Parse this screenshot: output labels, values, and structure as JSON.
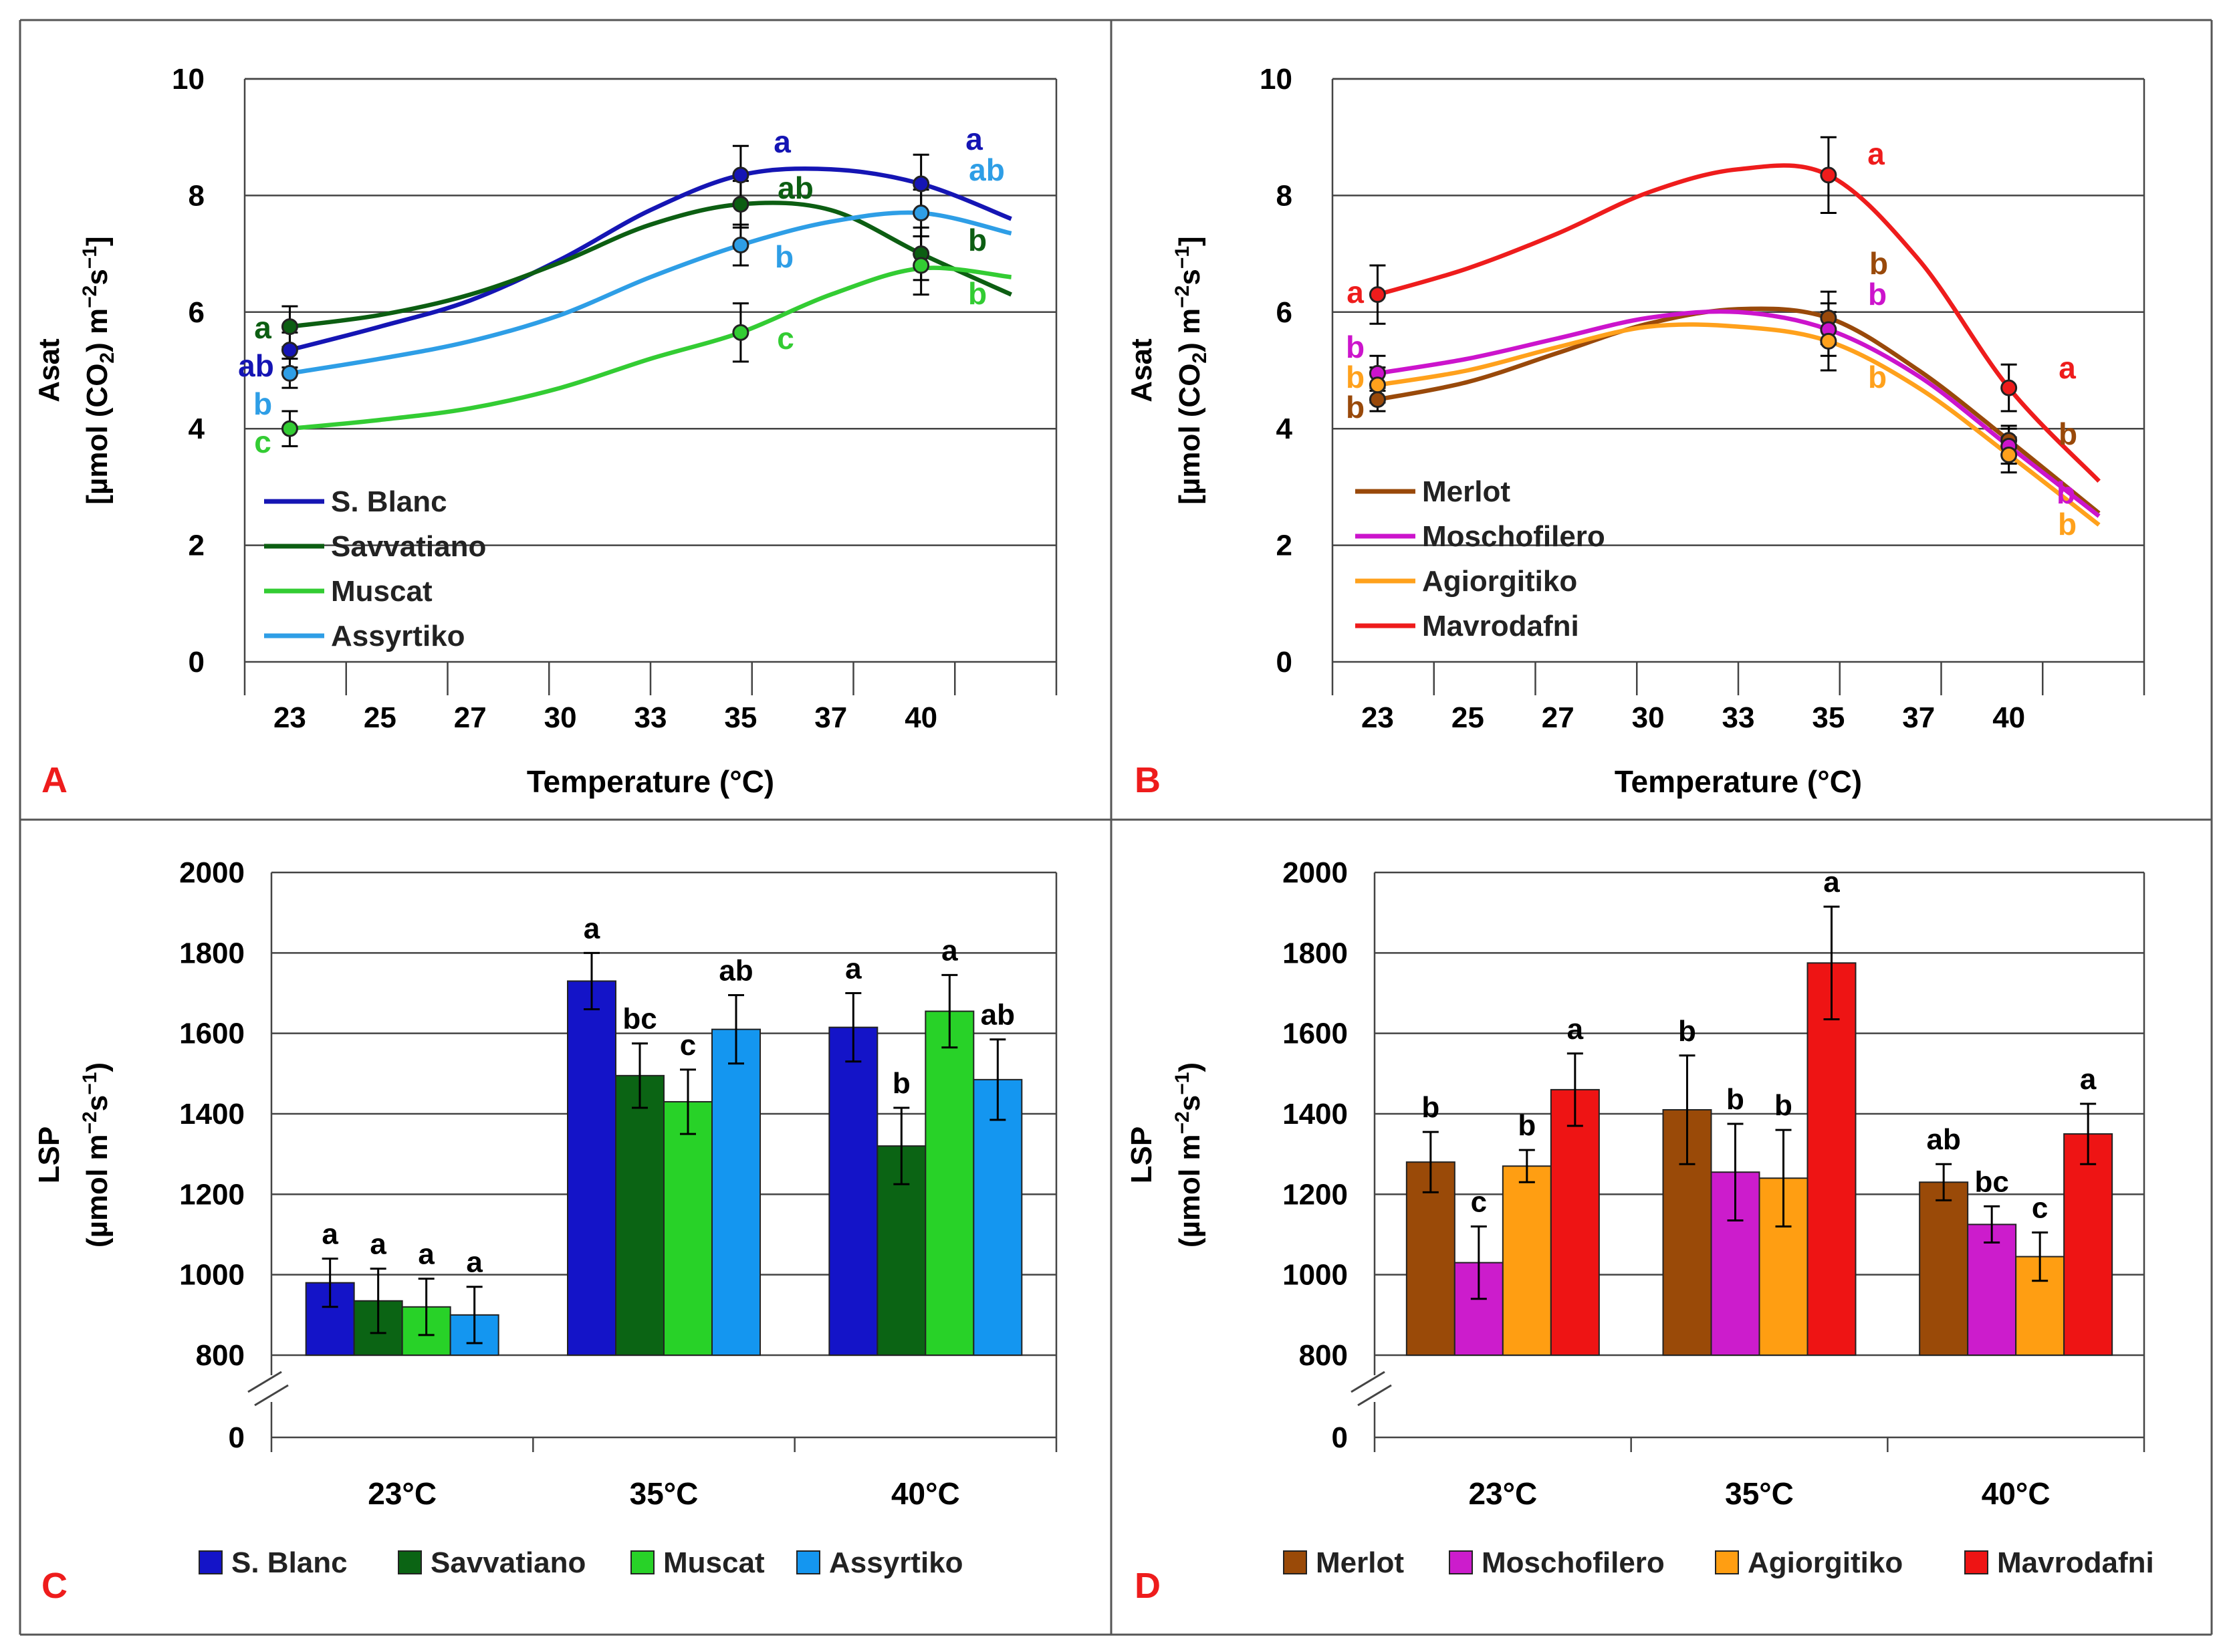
{
  "chart_data": [
    {
      "type": "line",
      "panel_letter": "A",
      "xlabel": "Temperature (°C)",
      "ylabel_line1": "Asat",
      "ylabel_line2_parts": [
        "[µmol (CO",
        "2",
        ") m",
        "−2",
        "s",
        "−1",
        "]"
      ],
      "x_ticks": [
        "23",
        "25",
        "27",
        "30",
        "33",
        "35",
        "37",
        "40"
      ],
      "x_measured": [
        "23",
        "35",
        "40"
      ],
      "y_ticks": [
        "0",
        "2",
        "4",
        "6",
        "8",
        "10"
      ],
      "ylim": [
        0,
        10
      ],
      "grid": true,
      "legend_position": "bottom-left",
      "series": [
        {
          "name": "S. Blanc",
          "color": "#1515b4",
          "values": [
            5.35,
            8.35,
            8.2
          ],
          "errors": [
            0.3,
            0.5,
            0.5
          ],
          "letters": [
            "ab",
            "a",
            "a"
          ],
          "curve": [
            5.35,
            5.75,
            6.2,
            6.9,
            7.75,
            8.35,
            8.45,
            8.2,
            7.6
          ]
        },
        {
          "name": "Savvatiano",
          "color": "#0c5e12",
          "values": [
            5.75,
            7.85,
            7.0
          ],
          "errors": [
            0.35,
            0.4,
            0.45
          ],
          "letters": [
            "a",
            "ab",
            "b"
          ],
          "curve": [
            5.75,
            5.95,
            6.3,
            6.85,
            7.5,
            7.85,
            7.75,
            7.0,
            6.3
          ]
        },
        {
          "name": "Muscat",
          "color": "#33cc33",
          "values": [
            4.0,
            5.65,
            6.8
          ],
          "errors": [
            0.3,
            0.5,
            0.5
          ],
          "letters": [
            "c",
            "c",
            "b"
          ],
          "curve": [
            4.0,
            4.15,
            4.35,
            4.7,
            5.2,
            5.65,
            6.3,
            6.75,
            6.6
          ]
        },
        {
          "name": "Assyrtiko",
          "color": "#2e9ee6",
          "values": [
            4.95,
            7.15,
            7.7
          ],
          "errors": [
            0.25,
            0.35,
            0.4
          ],
          "letters": [
            "b",
            "b",
            "ab"
          ],
          "curve": [
            4.95,
            5.2,
            5.5,
            5.95,
            6.6,
            7.15,
            7.55,
            7.7,
            7.35
          ]
        }
      ]
    },
    {
      "type": "line",
      "panel_letter": "B",
      "xlabel": "Temperature (°C)",
      "ylabel_line1": "Asat",
      "ylabel_line2_parts": [
        "[µmol (CO",
        "2",
        ") m",
        "−2",
        "s",
        "−1",
        "]"
      ],
      "x_ticks": [
        "23",
        "25",
        "27",
        "30",
        "33",
        "35",
        "37",
        "40"
      ],
      "x_measured": [
        "23",
        "35",
        "40"
      ],
      "y_ticks": [
        "0",
        "2",
        "4",
        "6",
        "8",
        "10"
      ],
      "ylim": [
        0,
        10
      ],
      "grid": true,
      "legend_position": "bottom-left",
      "series": [
        {
          "name": "Merlot",
          "color": "#99490a",
          "values": [
            4.5,
            5.9,
            3.8
          ],
          "errors": [
            0.2,
            0.45,
            0.25
          ],
          "letters": [
            "b",
            "b",
            "b"
          ],
          "curve": [
            4.5,
            4.8,
            5.3,
            5.8,
            6.05,
            5.9,
            5.0,
            3.8,
            2.55
          ]
        },
        {
          "name": "Moschofilero",
          "color": "#cc14cc",
          "values": [
            4.95,
            5.7,
            3.7
          ],
          "errors": [
            0.3,
            0.45,
            0.3
          ],
          "letters": [
            "b",
            "b",
            "b"
          ],
          "curve": [
            4.95,
            5.2,
            5.55,
            5.9,
            6.0,
            5.7,
            4.9,
            3.7,
            2.5
          ]
        },
        {
          "name": "Agiorgitiko",
          "color": "#ffa11c",
          "values": [
            4.75,
            5.5,
            3.55
          ],
          "errors": [
            0.3,
            0.5,
            0.3
          ],
          "letters": [
            "b",
            "b",
            "b"
          ],
          "curve": [
            4.75,
            5.0,
            5.4,
            5.75,
            5.75,
            5.5,
            4.7,
            3.55,
            2.35
          ]
        },
        {
          "name": "Mavrodafni",
          "color": "#ee1c1c",
          "values": [
            6.3,
            8.35,
            4.7
          ],
          "errors": [
            0.5,
            0.65,
            0.4
          ],
          "letters": [
            "a",
            "a",
            "a"
          ],
          "curve": [
            6.3,
            6.75,
            7.35,
            8.05,
            8.45,
            8.35,
            6.9,
            4.7,
            3.1
          ]
        }
      ]
    },
    {
      "type": "bar",
      "panel_letter": "C",
      "ylabel_line1": "LSP",
      "ylabel_line2_parts": [
        "(µmol m",
        "−2",
        "s",
        "−1",
        ")"
      ],
      "categories": [
        "23°C",
        "35°C",
        "40°C"
      ],
      "y_ticks": [
        "0",
        "800",
        "1000",
        "1200",
        "1400",
        "1600",
        "1800",
        "2000"
      ],
      "ylim": [
        800,
        2000
      ],
      "axis_break": true,
      "grid": true,
      "legend_position": "bottom",
      "series": [
        {
          "name": "S. Blanc",
          "color": "#1414c8",
          "values": [
            980,
            1730,
            1615
          ],
          "errors": [
            60,
            70,
            85
          ],
          "letters": [
            "a",
            "a",
            "a"
          ]
        },
        {
          "name": "Savvatiano",
          "color": "#0b6414",
          "values": [
            935,
            1495,
            1320
          ],
          "errors": [
            80,
            80,
            95
          ],
          "letters": [
            "a",
            "bc",
            "b"
          ]
        },
        {
          "name": "Muscat",
          "color": "#28d228",
          "values": [
            920,
            1430,
            1655
          ],
          "errors": [
            70,
            80,
            90
          ],
          "letters": [
            "a",
            "c",
            "a"
          ]
        },
        {
          "name": "Assyrtiko",
          "color": "#1496f0",
          "values": [
            900,
            1610,
            1485
          ],
          "errors": [
            70,
            85,
            100
          ],
          "letters": [
            "a",
            "ab",
            "ab"
          ]
        }
      ]
    },
    {
      "type": "bar",
      "panel_letter": "D",
      "ylabel_line1": "LSP",
      "ylabel_line2_parts": [
        "(µmol m",
        "−2",
        "s",
        "−1",
        ")"
      ],
      "categories": [
        "23°C",
        "35°C",
        "40°C"
      ],
      "y_ticks": [
        "0",
        "800",
        "1000",
        "1200",
        "1400",
        "1600",
        "1800",
        "2000"
      ],
      "ylim": [
        800,
        2000
      ],
      "axis_break": true,
      "grid": true,
      "legend_position": "bottom",
      "series": [
        {
          "name": "Merlot",
          "color": "#9a4a08",
          "values": [
            1280,
            1410,
            1230
          ],
          "errors": [
            75,
            135,
            45
          ],
          "letters": [
            "b",
            "b",
            "ab"
          ]
        },
        {
          "name": "Moschofilero",
          "color": "#cc1ccc",
          "values": [
            1030,
            1255,
            1125
          ],
          "errors": [
            90,
            120,
            45
          ],
          "letters": [
            "c",
            "b",
            "bc"
          ]
        },
        {
          "name": "Agiorgitiko",
          "color": "#ff9e12",
          "values": [
            1270,
            1240,
            1045
          ],
          "errors": [
            40,
            120,
            60
          ],
          "letters": [
            "b",
            "b",
            "c"
          ]
        },
        {
          "name": "Mavrodafni",
          "color": "#ee1414",
          "values": [
            1460,
            1775,
            1350
          ],
          "errors": [
            90,
            140,
            75
          ],
          "letters": [
            "a",
            "a",
            "a"
          ]
        }
      ]
    }
  ]
}
